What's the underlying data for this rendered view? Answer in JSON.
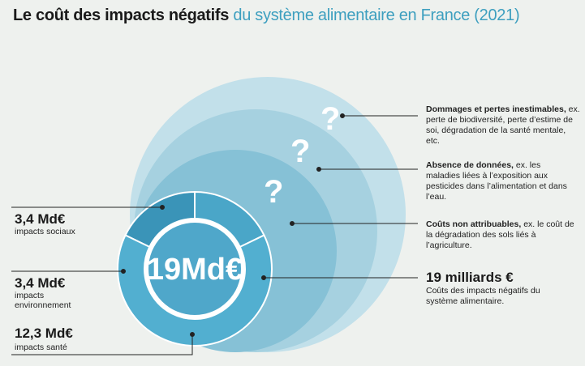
{
  "title": {
    "part1": "Le coût des impacts négatifs",
    "part2": "du système alimentaire en France (2021)"
  },
  "chart_data": {
    "type": "pie",
    "total_label": "19Md€",
    "total_value": 19,
    "unit": "Md€",
    "slices": [
      {
        "value_label": "3,4 Md€",
        "value": 3.4,
        "caption": "impacts sociaux",
        "color": "#3a94b8"
      },
      {
        "value_label": "3,4 Md€",
        "value": 3.4,
        "caption": "impacts environnement",
        "color": "#4aa6c8"
      },
      {
        "value_label": "12,3 Md€",
        "value": 12.3,
        "caption": "impacts santé",
        "color": "#52afd0"
      }
    ],
    "circles": [
      {
        "name": "Dommages et pertes inestimables",
        "bold": "Dommages et pertes inestimables,",
        "text": "ex. perte de biodiversité, perte d’estime de soi, dégradation de la santé mentale, etc.",
        "mark": "?",
        "color": "#b9dbe6"
      },
      {
        "name": "Absence de données",
        "bold": "Absence de données,",
        "text": "ex. les maladies liées à l’exposition aux pesticides dans l’alimentation et dans l’eau.",
        "mark": "?",
        "color": "#9fcddd"
      },
      {
        "name": "Coûts non attribuables",
        "bold": "Coûts non attribuables,",
        "text": "ex. le coût de la dégradation des sols liés à l’agriculture.",
        "mark": "?",
        "color": "#7fbcd3"
      }
    ],
    "total": {
      "value_label": "19 milliards €",
      "caption": "Coûts des impacts négatifs du système alimentaire."
    }
  }
}
